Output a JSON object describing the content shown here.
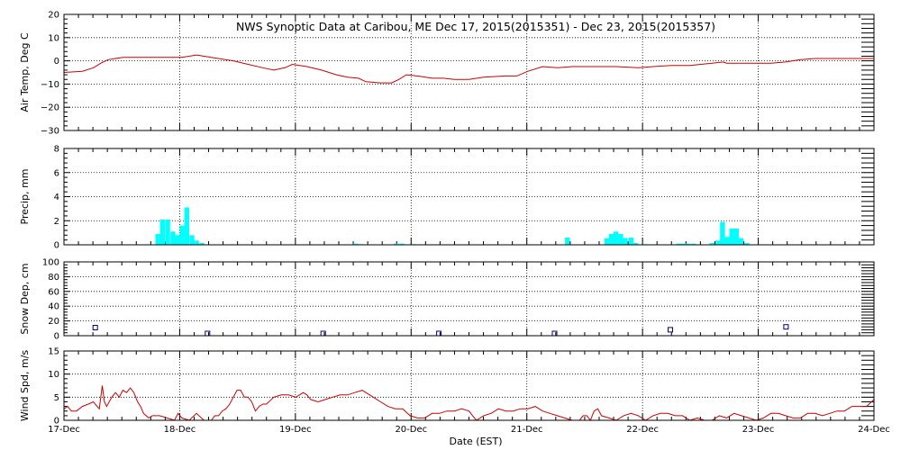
{
  "chart_data": {
    "type": "multi-panel time series",
    "title": "NWS Synoptic Data at Caribou, ME   Dec 17, 2015(2015351) - Dec 23, 2015(2015357)",
    "xlabel": "Date (EST)",
    "x_ticks": [
      "17-Dec",
      "18-Dec",
      "19-Dec",
      "20-Dec",
      "21-Dec",
      "22-Dec",
      "23-Dec",
      "24-Dec"
    ],
    "x_range_days": [
      0,
      7
    ],
    "grid": true,
    "panels": [
      {
        "id": "temp",
        "type": "line",
        "ylabel": "Air Temp, Deg C",
        "ylim": [
          -30,
          20
        ],
        "yticks": [
          "20",
          "10",
          "0",
          "−10",
          "−20",
          "−30"
        ],
        "ytick_values": [
          20,
          10,
          0,
          -10,
          -20,
          -30
        ],
        "color": "#cc0000",
        "points": [
          [
            0,
            -5
          ],
          [
            0.25,
            -4.5
          ],
          [
            0.4,
            -3
          ],
          [
            0.5,
            -1
          ],
          [
            0.6,
            0.5
          ],
          [
            0.8,
            1.5
          ],
          [
            1,
            1.5
          ],
          [
            1.3,
            1.5
          ],
          [
            1.6,
            1.5
          ],
          [
            1.8,
            2.5
          ],
          [
            2,
            1.5
          ],
          [
            2.3,
            0
          ],
          [
            2.5,
            -1.5
          ],
          [
            2.7,
            -3
          ],
          [
            2.85,
            -4
          ],
          [
            3,
            -3
          ],
          [
            3.1,
            -1.5
          ],
          [
            3.3,
            -2.5
          ],
          [
            3.5,
            -4
          ],
          [
            3.7,
            -6
          ],
          [
            3.85,
            -7
          ],
          [
            4,
            -7.5
          ],
          [
            4.1,
            -9
          ],
          [
            4.3,
            -9.5
          ],
          [
            4.45,
            -9.5
          ],
          [
            4.55,
            -8
          ],
          [
            4.65,
            -6
          ],
          [
            4.8,
            -6.5
          ],
          [
            5,
            -7.5
          ],
          [
            5.15,
            -7.5
          ],
          [
            5.3,
            -8
          ],
          [
            5.5,
            -8
          ],
          [
            5.7,
            -7
          ],
          [
            6,
            -6.5
          ],
          [
            6.15,
            -6.5
          ],
          [
            6.3,
            -4.5
          ],
          [
            6.5,
            -2.5
          ],
          [
            6.7,
            -3
          ],
          [
            6.9,
            -2.5
          ],
          [
            7.1,
            -2.5
          ],
          [
            7.5,
            -2.5
          ],
          [
            7.8,
            -3
          ],
          [
            8,
            -2.5
          ],
          [
            8.25,
            -2
          ],
          [
            8.5,
            -2
          ],
          [
            8.8,
            -1
          ],
          [
            8.95,
            -0.5
          ],
          [
            9,
            -1
          ],
          [
            9.3,
            -1
          ],
          [
            9.6,
            -1
          ],
          [
            9.8,
            -0.5
          ],
          [
            10,
            0.5
          ],
          [
            10.2,
            1
          ],
          [
            10.6,
            1
          ],
          [
            11,
            1
          ]
        ],
        "x_scale": 0.6363636
      },
      {
        "id": "precip",
        "type": "bar",
        "ylabel": "Precip, mm",
        "ylim": [
          0,
          8
        ],
        "yticks": [
          "8",
          "6",
          "4",
          "2",
          "0"
        ],
        "ytick_values": [
          8,
          6,
          4,
          2,
          0
        ],
        "color": "#00ffff",
        "bar_width_days": 0.0416667,
        "bars": [
          [
            0.79,
            0.9
          ],
          [
            0.83,
            2.1
          ],
          [
            0.875,
            2.1
          ],
          [
            0.92,
            1.1
          ],
          [
            0.96,
            0.8
          ],
          [
            1.0,
            1.6
          ],
          [
            1.04,
            3.1
          ],
          [
            1.085,
            0.8
          ],
          [
            1.125,
            0.35
          ],
          [
            1.17,
            0.15
          ],
          [
            2.5,
            0.1
          ],
          [
            2.54,
            0.05
          ],
          [
            2.85,
            0.1
          ],
          [
            2.9,
            0.1
          ],
          [
            3.0,
            0.05
          ],
          [
            4.33,
            0.6
          ],
          [
            4.67,
            0.55
          ],
          [
            4.71,
            0.9
          ],
          [
            4.75,
            1.1
          ],
          [
            4.79,
            0.9
          ],
          [
            4.83,
            0.55
          ],
          [
            4.88,
            0.6
          ],
          [
            4.92,
            0.15
          ],
          [
            5.0,
            0.05
          ],
          [
            5.29,
            0.1
          ],
          [
            5.33,
            0.1
          ],
          [
            5.37,
            0.1
          ],
          [
            5.42,
            0.1
          ],
          [
            5.58,
            0.15
          ],
          [
            5.63,
            0.35
          ],
          [
            5.67,
            1.9
          ],
          [
            5.71,
            0.65
          ],
          [
            5.75,
            1.35
          ],
          [
            5.79,
            1.35
          ],
          [
            5.83,
            0.55
          ],
          [
            5.88,
            0.15
          ]
        ]
      },
      {
        "id": "snow",
        "type": "scatter",
        "ylabel": "Snow Dep, cm",
        "ylim": [
          0,
          100
        ],
        "yticks": [
          "100",
          "80",
          "60",
          "40",
          "20",
          "0"
        ],
        "ytick_values": [
          100,
          80,
          60,
          40,
          20,
          0
        ],
        "color": "#000080",
        "points": [
          [
            0.27,
            11
          ],
          [
            1.24,
            3
          ],
          [
            2.24,
            3
          ],
          [
            3.24,
            3
          ],
          [
            4.24,
            3
          ],
          [
            5.24,
            8
          ],
          [
            6.24,
            12
          ]
        ]
      },
      {
        "id": "wind",
        "type": "line",
        "ylabel": "Wind Spd, m/s",
        "ylim": [
          0,
          15
        ],
        "yticks": [
          "15",
          "10",
          "5",
          "0"
        ],
        "ytick_values": [
          15,
          10,
          5,
          0
        ],
        "color": "#cc0000",
        "points": [
          [
            0,
            2.5
          ],
          [
            0.05,
            3
          ],
          [
            0.1,
            2
          ],
          [
            0.17,
            2
          ],
          [
            0.25,
            3
          ],
          [
            0.33,
            3.5
          ],
          [
            0.4,
            4
          ],
          [
            0.45,
            3
          ],
          [
            0.48,
            2.5
          ],
          [
            0.52,
            7.5
          ],
          [
            0.55,
            4
          ],
          [
            0.58,
            3
          ],
          [
            0.65,
            5
          ],
          [
            0.7,
            6
          ],
          [
            0.75,
            5
          ],
          [
            0.8,
            6.5
          ],
          [
            0.85,
            6
          ],
          [
            0.9,
            7
          ],
          [
            0.95,
            6
          ],
          [
            1.0,
            4
          ],
          [
            1.04,
            3
          ],
          [
            1.08,
            1.5
          ],
          [
            1.15,
            0.5
          ],
          [
            1.2,
            1
          ],
          [
            1.3,
            1
          ],
          [
            1.4,
            0.5
          ],
          [
            1.5,
            0
          ],
          [
            1.55,
            1.5
          ],
          [
            1.6,
            0.5
          ],
          [
            1.7,
            0
          ],
          [
            1.8,
            1.5
          ],
          [
            1.9,
            0
          ],
          [
            2.0,
            0
          ],
          [
            2.05,
            1
          ],
          [
            2.1,
            1
          ],
          [
            2.15,
            2
          ],
          [
            2.2,
            2.5
          ],
          [
            2.25,
            3.5
          ],
          [
            2.3,
            5
          ],
          [
            2.35,
            6.5
          ],
          [
            2.4,
            6.5
          ],
          [
            2.45,
            5
          ],
          [
            2.5,
            5
          ],
          [
            2.55,
            4
          ],
          [
            2.6,
            2
          ],
          [
            2.65,
            3
          ],
          [
            2.7,
            3.5
          ],
          [
            2.75,
            3.5
          ],
          [
            2.85,
            5
          ],
          [
            2.95,
            5.5
          ],
          [
            3.05,
            5.5
          ],
          [
            3.15,
            5
          ],
          [
            3.25,
            6
          ],
          [
            3.3,
            5.5
          ],
          [
            3.35,
            4.5
          ],
          [
            3.45,
            4
          ],
          [
            3.55,
            4.5
          ],
          [
            3.65,
            5
          ],
          [
            3.75,
            5.5
          ],
          [
            3.85,
            5.5
          ],
          [
            3.95,
            6
          ],
          [
            4.05,
            6.5
          ],
          [
            4.1,
            6
          ],
          [
            4.2,
            5
          ],
          [
            4.3,
            4
          ],
          [
            4.4,
            3
          ],
          [
            4.5,
            2.5
          ],
          [
            4.6,
            2.5
          ],
          [
            4.7,
            1
          ],
          [
            4.8,
            0.5
          ],
          [
            4.9,
            0.5
          ],
          [
            5.0,
            1.5
          ],
          [
            5.1,
            1.5
          ],
          [
            5.2,
            2
          ],
          [
            5.3,
            2
          ],
          [
            5.4,
            2.5
          ],
          [
            5.5,
            2
          ],
          [
            5.55,
            1
          ],
          [
            5.6,
            0
          ],
          [
            5.7,
            1
          ],
          [
            5.8,
            1.5
          ],
          [
            5.9,
            2.5
          ],
          [
            6.0,
            2
          ],
          [
            6.1,
            2
          ],
          [
            6.2,
            2.5
          ],
          [
            6.3,
            2.5
          ],
          [
            6.4,
            3
          ],
          [
            6.5,
            2
          ],
          [
            6.6,
            1.5
          ],
          [
            6.7,
            1
          ],
          [
            6.8,
            0.5
          ],
          [
            6.9,
            0
          ],
          [
            7.0,
            0
          ],
          [
            7.05,
            1
          ],
          [
            7.1,
            1
          ],
          [
            7.15,
            0
          ],
          [
            7.2,
            2
          ],
          [
            7.25,
            2.5
          ],
          [
            7.3,
            1
          ],
          [
            7.4,
            0.5
          ],
          [
            7.5,
            0
          ],
          [
            7.6,
            1
          ],
          [
            7.7,
            1.5
          ],
          [
            7.8,
            1
          ],
          [
            7.9,
            0
          ],
          [
            8.0,
            1
          ],
          [
            8.1,
            1.5
          ],
          [
            8.2,
            1.5
          ],
          [
            8.3,
            1
          ],
          [
            8.4,
            1
          ],
          [
            8.5,
            0
          ],
          [
            8.6,
            0.5
          ],
          [
            8.7,
            0
          ],
          [
            8.8,
            0
          ],
          [
            8.9,
            1
          ],
          [
            9.0,
            0.5
          ],
          [
            9.1,
            1.5
          ],
          [
            9.2,
            1
          ],
          [
            9.3,
            0.5
          ],
          [
            9.4,
            0
          ],
          [
            9.5,
            0.5
          ],
          [
            9.6,
            1.5
          ],
          [
            9.7,
            1.5
          ],
          [
            9.8,
            1
          ],
          [
            9.9,
            0.5
          ],
          [
            10.0,
            0.5
          ],
          [
            10.1,
            1.5
          ],
          [
            10.2,
            1.5
          ],
          [
            10.3,
            1
          ],
          [
            10.4,
            1.5
          ],
          [
            10.5,
            2
          ],
          [
            10.6,
            2
          ],
          [
            10.7,
            3
          ],
          [
            10.8,
            3
          ],
          [
            10.9,
            3
          ],
          [
            11.0,
            4.5
          ]
        ],
        "x_scale": 0.6363636
      }
    ]
  }
}
